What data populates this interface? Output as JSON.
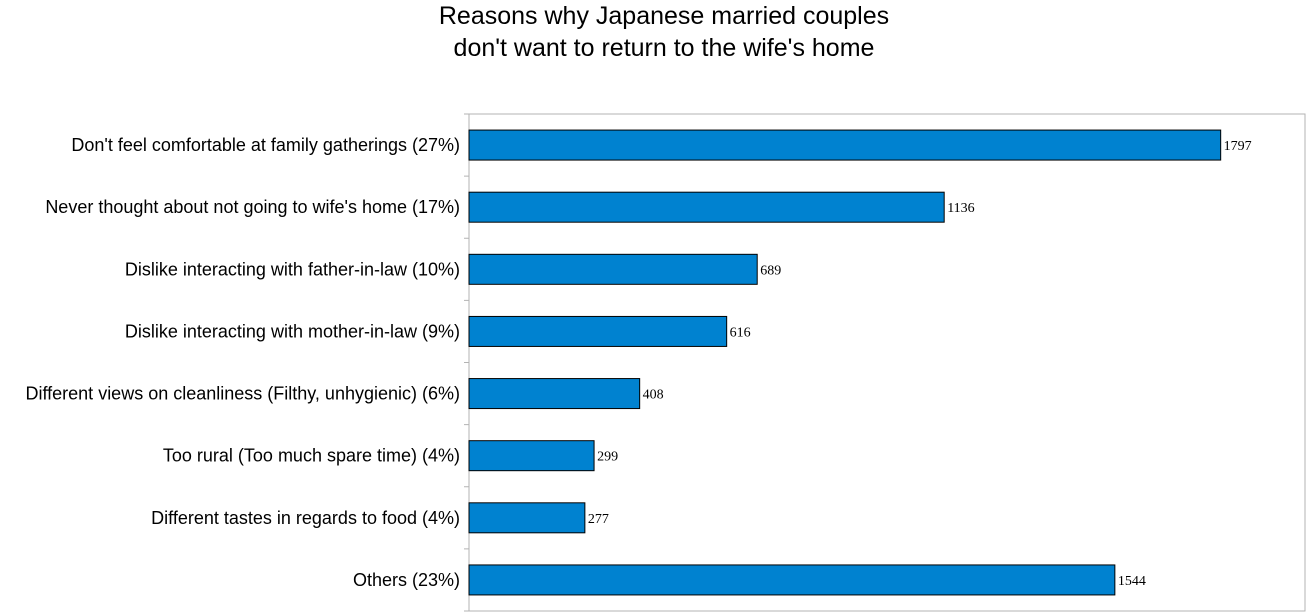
{
  "chart_data": {
    "type": "bar",
    "orientation": "horizontal",
    "title_lines": [
      "Reasons why Japanese married couples",
      "don't want to return to the wife's home"
    ],
    "categories": [
      "Don't feel comfortable at family gatherings (27%)",
      "Never thought about not going to wife's home (17%)",
      "Dislike interacting with father-in-law (10%)",
      "Dislike interacting with mother-in-law (9%)",
      "Different views on cleanliness (Filthy, unhygienic) (6%)",
      "Too rural (Too much spare time) (4%)",
      "Different tastes in regards to food (4%)",
      "Others (23%)"
    ],
    "values": [
      1797,
      1136,
      689,
      616,
      408,
      299,
      277,
      1544
    ],
    "value_labels": [
      "1797",
      "1136",
      "689",
      "616",
      "408",
      "299",
      "277",
      "1544"
    ],
    "xlim": [
      0,
      1900
    ],
    "grid": false,
    "legend": "none",
    "colors": {
      "bar_fill": "#0082d0",
      "bar_stroke": "#000000",
      "frame": "#b3b3b3",
      "axis": "#b3b3b3"
    }
  }
}
